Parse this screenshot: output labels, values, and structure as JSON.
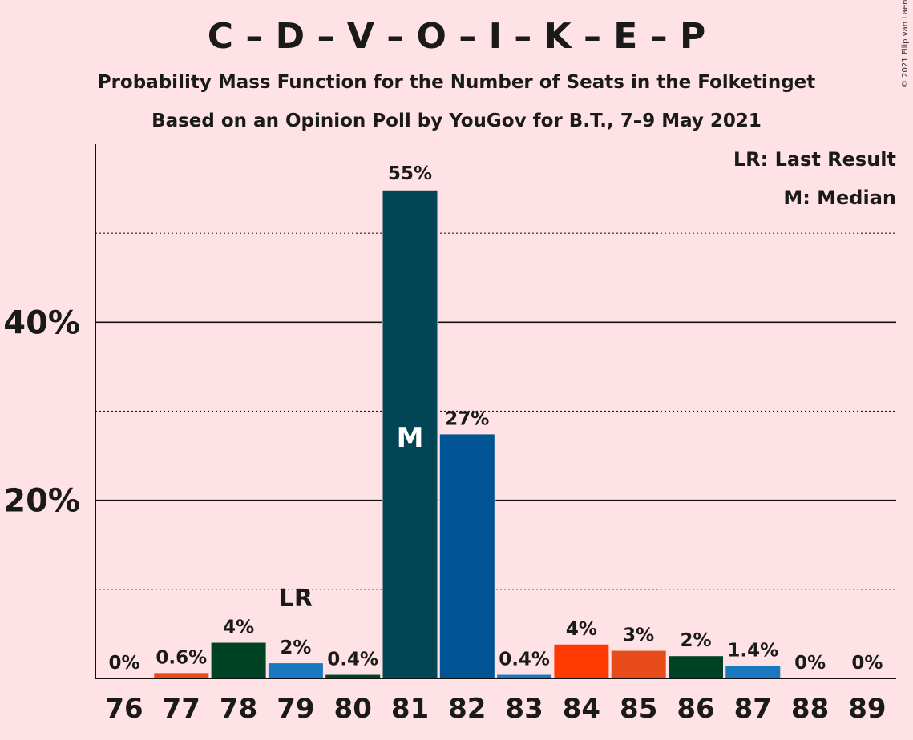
{
  "title": "C – D – V – O – I – K – E – P",
  "subtitle": "Probability Mass Function for the Number of Seats in the Folketinget",
  "subtitle2": "Based on an Opinion Poll by YouGov for B.T., 7–9 May 2021",
  "copyright": "© 2021 Filip van Laenen",
  "legend": {
    "last_result": "LR: Last Result",
    "median": "M: Median"
  },
  "chart_data": {
    "type": "bar",
    "title": "C – D – V – O – I – K – E – P",
    "categories": [
      "76",
      "77",
      "78",
      "79",
      "80",
      "81",
      "82",
      "83",
      "84",
      "85",
      "86",
      "87",
      "88",
      "89"
    ],
    "values": [
      0,
      0.6,
      4,
      1.7,
      0.4,
      54.8,
      27.4,
      0.4,
      3.8,
      3.1,
      2.5,
      1.4,
      0,
      0
    ],
    "value_labels": [
      "0%",
      "0.6%",
      "4%",
      "2%",
      "0.4%",
      "55%",
      "27%",
      "0.4%",
      "4%",
      "3%",
      "2%",
      "1.4%",
      "0%",
      "0%"
    ],
    "colors": [
      "#E84B1A",
      "#E84B1A",
      "#004225",
      "#1878C0",
      "#004225",
      "#024555",
      "#005494",
      "#1878C0",
      "#FF3A00",
      "#E84B1A",
      "#004225",
      "#1878C0",
      "#1878C0",
      "#1878C0"
    ],
    "y_ticks": [
      {
        "value": 20,
        "label": "20%"
      },
      {
        "value": 40,
        "label": "40%"
      }
    ],
    "y_dotted_gridlines": [
      10,
      30,
      50
    ],
    "ylim": [
      0,
      60
    ],
    "last_result": {
      "category": "79",
      "label": "LR"
    },
    "median": {
      "category": "81",
      "label": "M"
    }
  }
}
